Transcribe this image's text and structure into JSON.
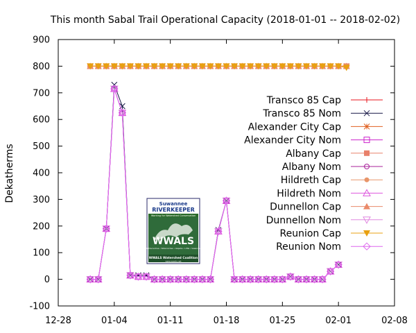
{
  "chart_data": {
    "type": "line",
    "title": "This month Sabal Trail Operational Capacity (2018-01-01 -- 2018-02-02)",
    "xlabel": "",
    "ylabel": "Dekatherms",
    "xlim": [
      "2017-12-28",
      "2018-02-08"
    ],
    "ylim": [
      -100,
      900
    ],
    "x_ticks": [
      "12-28",
      "01-04",
      "01-11",
      "01-18",
      "01-25",
      "02-01",
      "02-08"
    ],
    "y_ticks": [
      "-100",
      "0",
      "100",
      "200",
      "300",
      "400",
      "500",
      "600",
      "700",
      "800",
      "900"
    ],
    "grid": false,
    "legend_position": "right",
    "x": [
      "2018-01-01",
      "2018-01-02",
      "2018-01-03",
      "2018-01-04",
      "2018-01-05",
      "2018-01-06",
      "2018-01-07",
      "2018-01-08",
      "2018-01-09",
      "2018-01-10",
      "2018-01-11",
      "2018-01-12",
      "2018-01-13",
      "2018-01-14",
      "2018-01-15",
      "2018-01-16",
      "2018-01-17",
      "2018-01-18",
      "2018-01-19",
      "2018-01-20",
      "2018-01-21",
      "2018-01-22",
      "2018-01-23",
      "2018-01-24",
      "2018-01-25",
      "2018-01-26",
      "2018-01-27",
      "2018-01-28",
      "2018-01-29",
      "2018-01-30",
      "2018-01-31",
      "2018-02-01",
      "2018-02-02"
    ],
    "series": [
      {
        "name": "Transco 85 Cap",
        "color": "#e8161e",
        "marker": "plus",
        "values": [
          800,
          800,
          800,
          800,
          800,
          800,
          800,
          800,
          800,
          800,
          800,
          800,
          800,
          800,
          800,
          800,
          800,
          800,
          800,
          800,
          800,
          800,
          800,
          800,
          800,
          800,
          800,
          800,
          800,
          800,
          800,
          800,
          800
        ]
      },
      {
        "name": "Transco 85 Nom",
        "color": "#151545",
        "marker": "cross",
        "values": [
          0,
          0,
          190,
          730,
          650,
          15,
          15,
          15,
          0,
          0,
          0,
          0,
          0,
          0,
          0,
          0,
          185,
          295,
          0,
          0,
          0,
          0,
          0,
          0,
          0,
          10,
          0,
          0,
          0,
          0,
          30,
          55,
          null
        ]
      },
      {
        "name": "Alexander City Cap",
        "color": "#e06020",
        "marker": "star",
        "values": [
          800,
          800,
          800,
          800,
          800,
          800,
          800,
          800,
          800,
          800,
          800,
          800,
          800,
          800,
          800,
          800,
          800,
          800,
          800,
          800,
          800,
          800,
          800,
          800,
          800,
          800,
          800,
          800,
          800,
          800,
          800,
          800,
          800
        ]
      },
      {
        "name": "Alexander City Nom",
        "color": "#cc22cc",
        "marker": "square-open",
        "values": [
          0,
          0,
          190,
          715,
          625,
          15,
          10,
          10,
          0,
          0,
          0,
          0,
          0,
          0,
          0,
          0,
          180,
          295,
          0,
          0,
          0,
          0,
          0,
          0,
          0,
          10,
          0,
          0,
          0,
          0,
          30,
          55,
          null
        ]
      },
      {
        "name": "Albany Cap",
        "color": "#e8806a",
        "marker": "square-filled",
        "values": [
          800,
          800,
          800,
          800,
          800,
          800,
          800,
          800,
          800,
          800,
          800,
          800,
          800,
          800,
          800,
          800,
          800,
          800,
          800,
          800,
          800,
          800,
          800,
          800,
          800,
          800,
          800,
          800,
          800,
          800,
          800,
          800,
          800
        ]
      },
      {
        "name": "Albany Nom",
        "color": "#a8209a",
        "marker": "circle-open",
        "values": [
          0,
          0,
          190,
          715,
          625,
          15,
          10,
          10,
          0,
          0,
          0,
          0,
          0,
          0,
          0,
          0,
          180,
          295,
          0,
          0,
          0,
          0,
          0,
          0,
          0,
          10,
          0,
          0,
          0,
          0,
          30,
          55,
          null
        ]
      },
      {
        "name": "Hildreth Cap",
        "color": "#e8956a",
        "marker": "circle-filled",
        "values": [
          800,
          800,
          800,
          800,
          800,
          800,
          800,
          800,
          800,
          800,
          800,
          800,
          800,
          800,
          800,
          800,
          800,
          800,
          800,
          800,
          800,
          800,
          800,
          800,
          800,
          800,
          800,
          800,
          800,
          800,
          800,
          800,
          800
        ]
      },
      {
        "name": "Hildreth Nom",
        "color": "#dd55dd",
        "marker": "triangle-open",
        "values": [
          0,
          0,
          190,
          715,
          625,
          15,
          10,
          10,
          0,
          0,
          0,
          0,
          0,
          0,
          0,
          0,
          180,
          295,
          0,
          0,
          0,
          0,
          0,
          0,
          0,
          10,
          0,
          0,
          0,
          0,
          30,
          55,
          null
        ]
      },
      {
        "name": "Dunnellon Cap",
        "color": "#ea8a6a",
        "marker": "triangle-filled",
        "values": [
          800,
          800,
          800,
          800,
          800,
          800,
          800,
          800,
          800,
          800,
          800,
          800,
          800,
          800,
          800,
          800,
          800,
          800,
          800,
          800,
          800,
          800,
          800,
          800,
          800,
          800,
          800,
          800,
          800,
          800,
          800,
          800,
          800
        ]
      },
      {
        "name": "Dunnellon Nom",
        "color": "#e088e0",
        "marker": "invtriangle-open",
        "values": [
          0,
          0,
          190,
          715,
          625,
          15,
          10,
          10,
          0,
          0,
          0,
          0,
          0,
          0,
          0,
          0,
          180,
          295,
          0,
          0,
          0,
          0,
          0,
          0,
          0,
          10,
          0,
          0,
          0,
          0,
          30,
          55,
          null
        ]
      },
      {
        "name": "Reunion Cap",
        "color": "#e8a010",
        "marker": "invtriangle-filled",
        "values": [
          800,
          800,
          800,
          800,
          800,
          800,
          800,
          800,
          800,
          800,
          800,
          800,
          800,
          800,
          800,
          800,
          800,
          800,
          800,
          800,
          800,
          800,
          800,
          800,
          800,
          800,
          800,
          800,
          800,
          800,
          800,
          800,
          795
        ]
      },
      {
        "name": "Reunion Nom",
        "color": "#dd66ee",
        "marker": "diamond-open",
        "values": [
          0,
          0,
          190,
          715,
          625,
          15,
          10,
          10,
          0,
          0,
          0,
          0,
          0,
          0,
          0,
          0,
          180,
          295,
          0,
          0,
          0,
          0,
          0,
          0,
          0,
          10,
          0,
          0,
          0,
          0,
          30,
          55,
          null
        ]
      }
    ]
  },
  "logo": {
    "line1": "Suwannee",
    "line2": "RIVERKEEPER",
    "tagline": "Working for Watershed Conservation",
    "wordmark": "WWALS",
    "rivers": "Withlacoochee • Willacoochee • Alapaha • Little • Suwannee",
    "footer": "WWALS Watershed Coalition",
    "url": "www.wwals.net"
  }
}
